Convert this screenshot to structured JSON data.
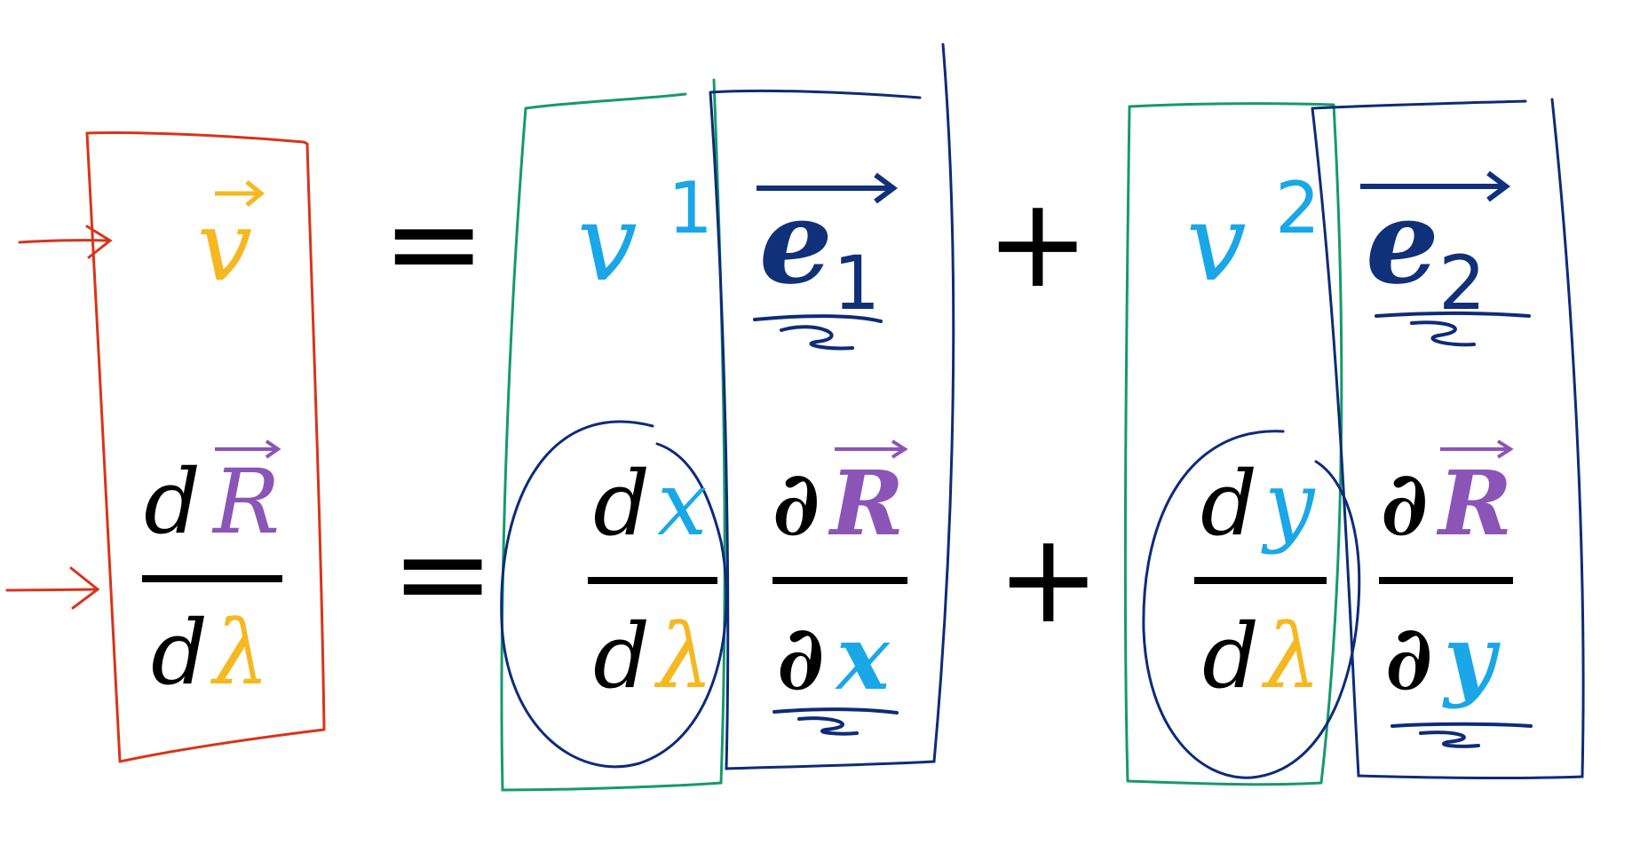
{
  "equation": {
    "row1": {
      "lhs": "v",
      "eq": "=",
      "coef1": "v",
      "sup1": "1",
      "basis1": "e",
      "sub1": "1",
      "plus": "+",
      "coef2": "v",
      "sup2": "2",
      "basis2": "e",
      "sub2": "2"
    },
    "row2": {
      "lhs_num_d": "d",
      "lhs_num_R": "R",
      "lhs_den": "dλ",
      "lhs_den_d": "d",
      "lhs_den_lambda": "λ",
      "eq": "=",
      "t1_num_d": "d",
      "t1_num_x": "x",
      "t1_den_d": "d",
      "t1_den_lambda": "λ",
      "b1_num_partial": "∂",
      "b1_num_R": "R",
      "b1_den_partial": "∂",
      "b1_den_x": "x",
      "plus": "+",
      "t2_num_d": "d",
      "t2_num_y": "y",
      "t2_den_d": "d",
      "t2_den_lambda": "λ",
      "b2_num_partial": "∂",
      "b2_num_R": "R",
      "b2_den_partial": "∂",
      "b2_den_y": "y"
    }
  },
  "colors": {
    "vector_v": "#f5b820",
    "coefficient": "#1aa7e8",
    "basis": "#10307a",
    "black": "#000000",
    "purple": "#8b55b8",
    "lambda": "#f5b820",
    "red_annotation": "#d8341b",
    "green_annotation": "#159a6b",
    "navy_annotation": "#0d2b78"
  }
}
